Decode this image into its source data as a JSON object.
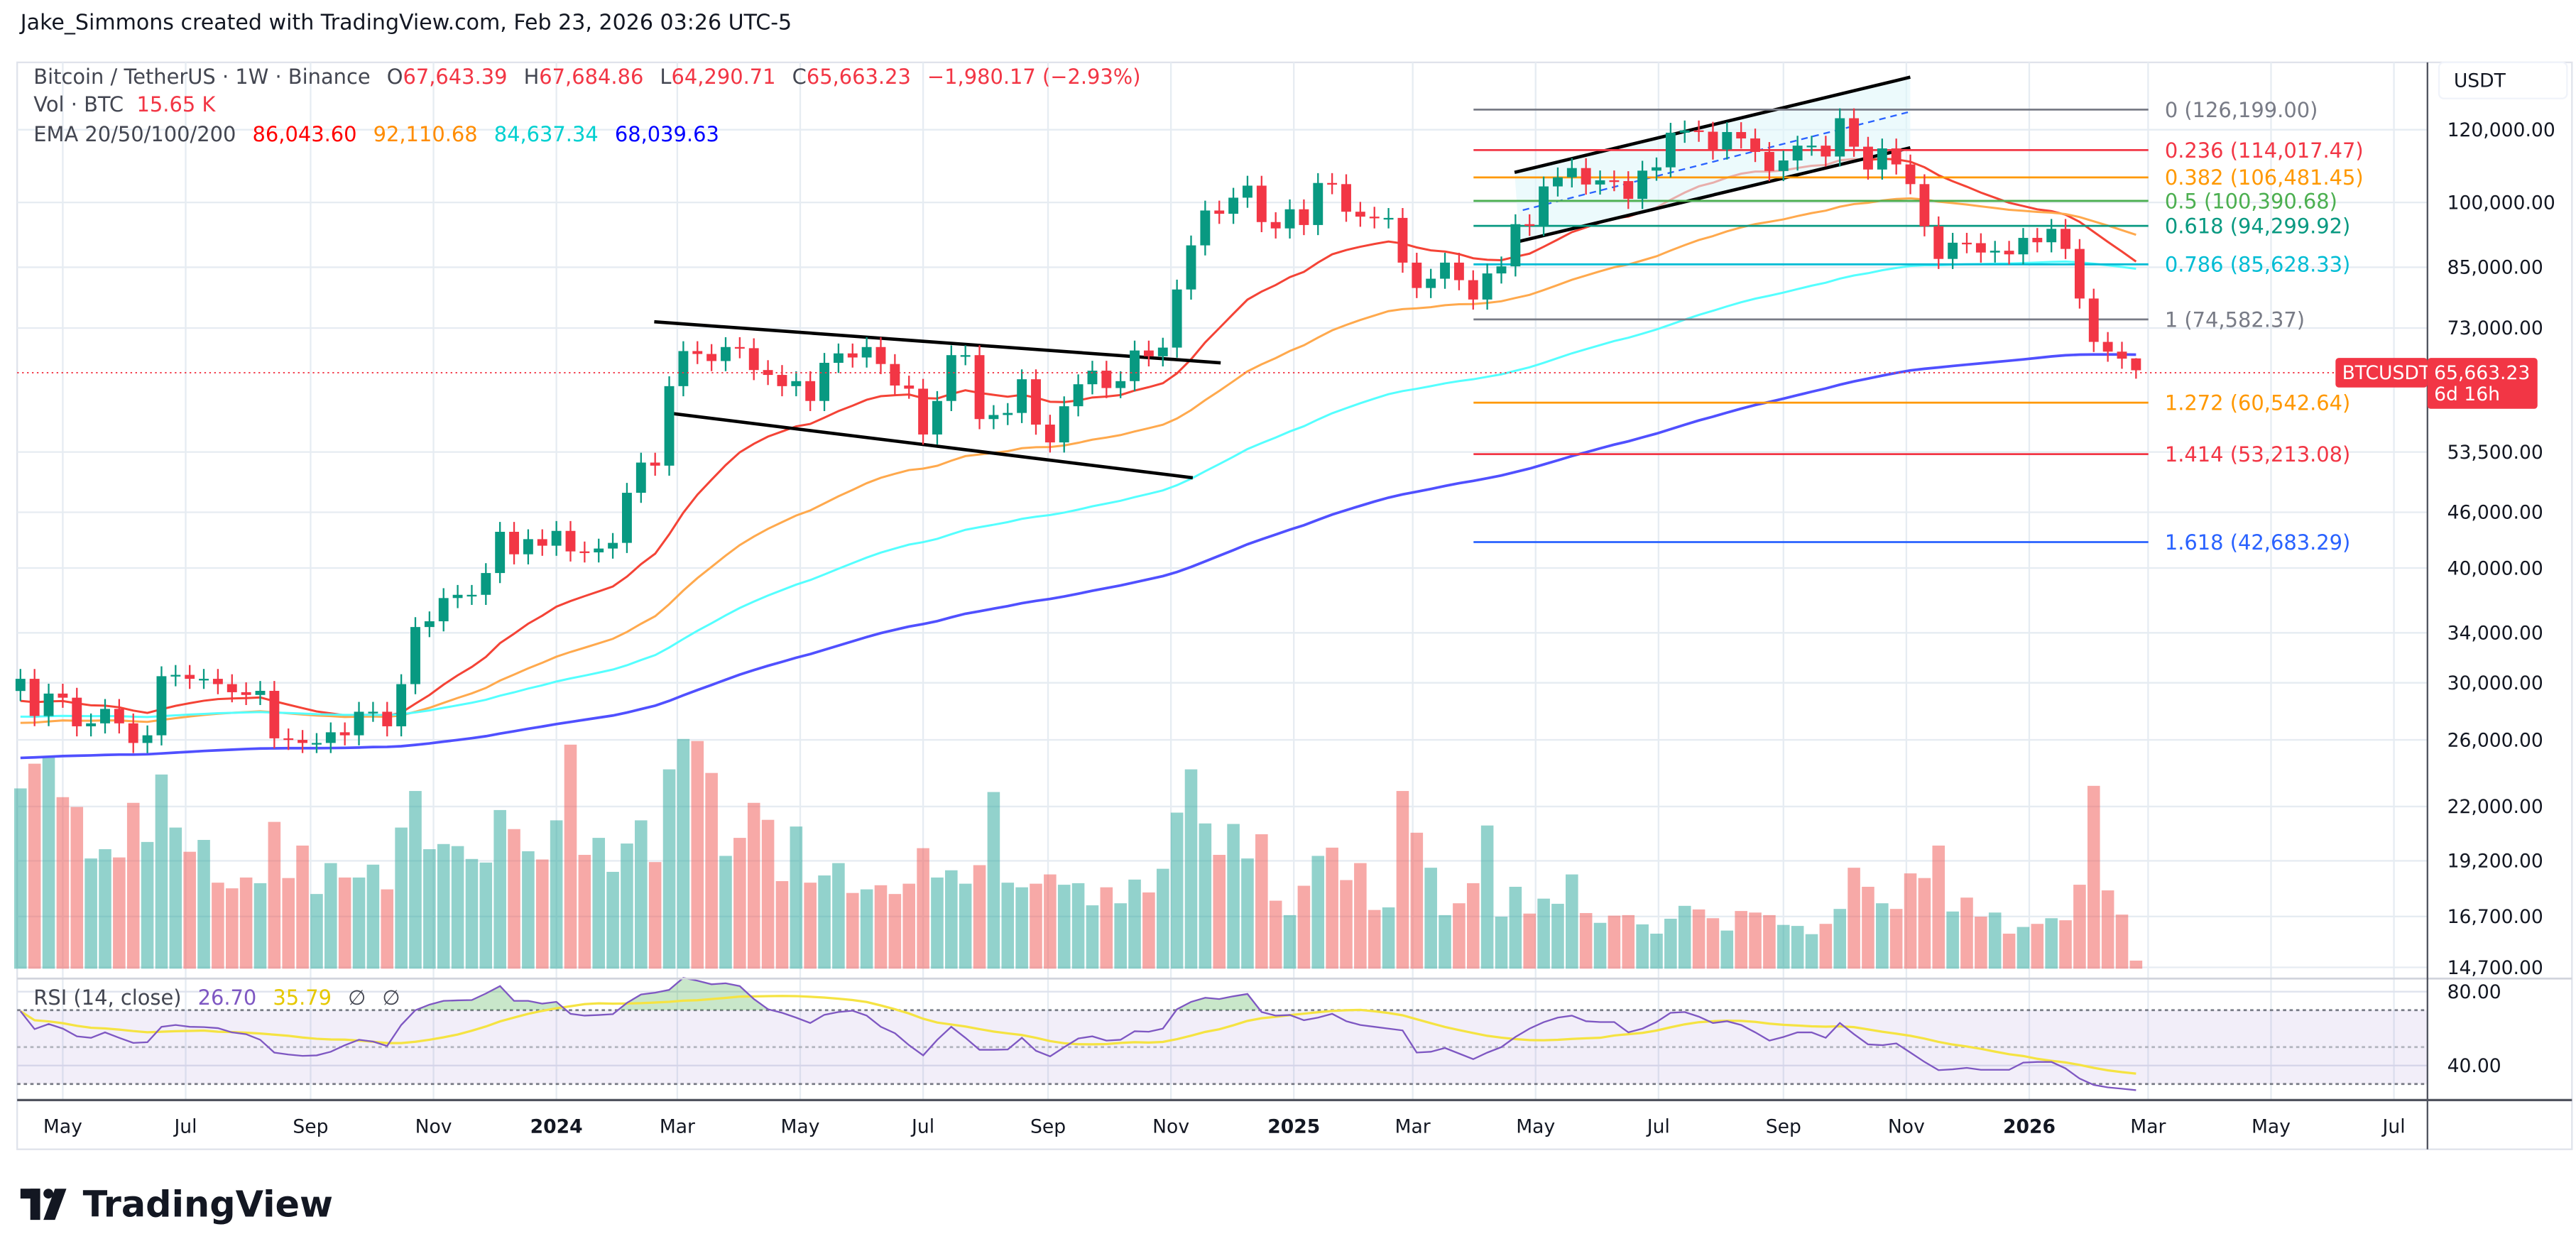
{
  "attribution": "Jake_Simmons created with TradingView.com, Feb 23, 2026 03:26 UTC-5",
  "legend": {
    "symbol": "Bitcoin / TetherUS · 1W · Binance",
    "o_label": "O",
    "o": "67,643.39",
    "h_label": "H",
    "h": "67,684.86",
    "l_label": "L",
    "l": "64,290.71",
    "c_label": "C",
    "c": "65,663.23",
    "change": "−1,980.17 (−2.93%)",
    "vol_label": "Vol · BTC",
    "vol": "15.65 K",
    "ema_label": "EMA 20/50/100/200",
    "ema20": "86,043.60",
    "ema50": "92,110.68",
    "ema100": "84,637.34",
    "ema200": "68,039.63",
    "ema_colors": [
      "#ff0000",
      "#ff8c00",
      "#00e0e0",
      "#0000ff"
    ]
  },
  "currency": "USDT",
  "last_price": {
    "ticker": "BTCUSDT",
    "price": "65,663.23",
    "countdown": "6d 16h",
    "color": "#f23645"
  },
  "rsi_legend": {
    "label": "RSI (14, close)",
    "rsi": "26.70",
    "ma": "35.79",
    "e1": "∅",
    "e2": "∅",
    "rsi_color": "#7e57c2",
    "ma_color": "#f5d800"
  },
  "logo": {
    "text": "TradingView",
    "icon": "tradingview-logo-icon"
  },
  "chart_data": {
    "type": "candlestick",
    "timeframe": "1W",
    "scale": "log",
    "first_week": "2023-04-10",
    "grid": true,
    "colors": {
      "up": "#089981",
      "down": "#f23645"
    },
    "close": [
      30300,
      27600,
      29200,
      28900,
      26900,
      27100,
      28100,
      27100,
      25800,
      26300,
      30500,
      30600,
      30300,
      30300,
      29900,
      29300,
      29100,
      29400,
      26100,
      26000,
      25800,
      25800,
      26500,
      26300,
      27900,
      27900,
      26900,
      29900,
      34500,
      35000,
      37100,
      37400,
      37400,
      39500,
      43800,
      41400,
      43000,
      42300,
      43900,
      41700,
      41600,
      42000,
      42600,
      48300,
      52100,
      51700,
      63100,
      68900,
      68400,
      67200,
      69600,
      69400,
      65700,
      64900,
      63100,
      63900,
      60800,
      66900,
      68500,
      67800,
      69600,
      66700,
      63200,
      62700,
      55900,
      60800,
      68200,
      68200,
      58100,
      58700,
      59000,
      64200,
      57300,
      54800,
      60000,
      63400,
      65600,
      62800,
      63900,
      69000,
      68000,
      69500,
      80400,
      89800,
      98000,
      97200,
      101200,
      104300,
      95200,
      93700,
      98300,
      94500,
      105000,
      104700,
      97700,
      96500,
      96100,
      96200,
      86000,
      80700,
      82600,
      86000,
      82300,
      78400,
      83700,
      85200,
      94700,
      94300,
      104100,
      106500,
      109000,
      104600,
      105700,
      105500,
      100900,
      108300,
      109200,
      119100,
      119800,
      119400,
      114200,
      119300,
      117400,
      113500,
      108200,
      111100,
      115300,
      115300,
      112200,
      123500,
      115000,
      108600,
      114500,
      110000,
      104700,
      94200,
      86800,
      90400,
      90300,
      88200,
      88600,
      87800,
      91500,
      90500,
      93600,
      89000,
      78600,
      70500,
      68800,
      67600,
      65663.23
    ],
    "last_candle": {
      "open": 67643.39,
      "high": 67684.86,
      "low": 64290.71,
      "close": 65663.23
    },
    "volume_k_btc": [
      350,
      398,
      412,
      333,
      314,
      214,
      232,
      216,
      322,
      246,
      377,
      274,
      227,
      250,
      167,
      156,
      177,
      166,
      285,
      176,
      239,
      145,
      205,
      177,
      177,
      202,
      154,
      274,
      345,
      232,
      242,
      238,
      213,
      206,
      308,
      271,
      228,
      212,
      288,
      435,
      221,
      254,
      188,
      243,
      288,
      207,
      387,
      446,
      442,
      380,
      219,
      254,
      322,
      289,
      170,
      276,
      167,
      181,
      205,
      147,
      154,
      162,
      145,
      165,
      234,
      177,
      191,
      165,
      201,
      343,
      167,
      158,
      165,
      183,
      163,
      166,
      123,
      158,
      127,
      173,
      148,
      194,
      303,
      387,
      282,
      221,
      281,
      214,
      261,
      132,
      104,
      161,
      219,
      235,
      172,
      205,
      114,
      119,
      345,
      264,
      196,
      104,
      127,
      166,
      278,
      101,
      159,
      107,
      136,
      126,
      183,
      108,
      89,
      103,
      104,
      86,
      68,
      97,
      122,
      115,
      98,
      74,
      112,
      109,
      104,
      85,
      83,
      67,
      87,
      116,
      196,
      159,
      127,
      116,
      185,
      176,
      239,
      111,
      138,
      101,
      109,
      68,
      81,
      87,
      98,
      94,
      163,
      355,
      152,
      105,
      15.65
    ],
    "rsi": [
      69.4,
      59.7,
      62.5,
      60,
      55.8,
      55,
      58,
      55,
      52.3,
      52.6,
      61,
      62,
      61,
      60.8,
      60.3,
      58,
      57,
      54,
      47,
      46,
      45.2,
      45.5,
      47.5,
      51,
      54,
      53,
      50.6,
      62,
      70,
      73,
      75,
      75.3,
      75.5,
      79,
      83,
      75,
      75,
      73.5,
      74.5,
      68,
      67,
      67.4,
      67.8,
      74,
      78.5,
      79.5,
      81,
      87.5,
      86,
      84,
      84.5,
      83,
      76,
      70.5,
      68.5,
      66,
      63,
      67.5,
      69,
      69.7,
      67,
      61,
      57.5,
      51,
      45.5,
      54,
      61,
      55,
      48.5,
      48.5,
      48.7,
      55,
      48,
      45,
      50,
      54.7,
      55.8,
      53.5,
      54,
      58.6,
      58.3,
      60,
      70.5,
      74.5,
      76.7,
      76,
      77.5,
      78.8,
      69,
      67,
      67.4,
      64.5,
      66,
      68,
      64,
      62,
      61,
      60,
      59,
      47,
      47.5,
      49.5,
      46.5,
      43.5,
      47,
      50,
      55.5,
      60,
      63.5,
      66,
      67,
      64,
      63.6,
      63.6,
      58,
      60,
      63.6,
      68.5,
      69,
      66.5,
      63,
      64,
      62,
      58,
      53.5,
      55.5,
      58,
      58,
      55,
      63,
      57,
      51.5,
      51,
      52,
      47,
      42,
      37.5,
      38,
      38.8,
      37.7,
      37.7,
      37.7,
      41.6,
      42,
      42,
      38.5,
      33,
      29.5,
      28.2,
      27.5,
      26.7
    ],
    "rsi_levels": {
      "upper": 70,
      "middle": 50,
      "lower": 30
    },
    "rsi_axis_ticks": [
      "80.00",
      "40.00"
    ],
    "ema_periods": [
      20,
      50,
      100,
      200
    ],
    "ema_line_colors": [
      "#f44336",
      "#ffa94d",
      "#55ffff",
      "#5050ff"
    ],
    "price_axis_ticks": [
      "120,000.00",
      "100,000.00",
      "85,000.00",
      "73,000.00",
      "53,500.00",
      "46,000.00",
      "40,000.00",
      "34,000.00",
      "30,000.00",
      "26,000.00",
      "22,000.00",
      "19,200.00",
      "16,700.00",
      "14,700.00"
    ],
    "time_axis_ticks": [
      {
        "label": "May",
        "date": "2023-05-01"
      },
      {
        "label": "Jul",
        "date": "2023-07-01"
      },
      {
        "label": "Sep",
        "date": "2023-09-01"
      },
      {
        "label": "Nov",
        "date": "2023-11-01"
      },
      {
        "label": "2024",
        "date": "2024-01-01",
        "bold": true
      },
      {
        "label": "Mar",
        "date": "2024-03-01"
      },
      {
        "label": "May",
        "date": "2024-05-01"
      },
      {
        "label": "Jul",
        "date": "2024-07-01"
      },
      {
        "label": "Sep",
        "date": "2024-09-01"
      },
      {
        "label": "Nov",
        "date": "2024-11-01"
      },
      {
        "label": "2025",
        "date": "2025-01-01",
        "bold": true
      },
      {
        "label": "Mar",
        "date": "2025-03-01"
      },
      {
        "label": "May",
        "date": "2025-05-01"
      },
      {
        "label": "Jul",
        "date": "2025-07-01"
      },
      {
        "label": "Sep",
        "date": "2025-09-01"
      },
      {
        "label": "Nov",
        "date": "2025-11-01"
      },
      {
        "label": "2026",
        "date": "2026-01-01",
        "bold": true
      },
      {
        "label": "Mar",
        "date": "2026-03-01"
      },
      {
        "label": "May",
        "date": "2026-05-01"
      },
      {
        "label": "Jul",
        "date": "2026-07-01"
      }
    ],
    "fibonacci": [
      {
        "ratio": "0",
        "value": 126199.0,
        "label": "0 (126,199.00)",
        "color": "#787b86"
      },
      {
        "ratio": "0.236",
        "value": 114017.47,
        "label": "0.236 (114,017.47)",
        "color": "#f23645"
      },
      {
        "ratio": "0.382",
        "value": 106481.45,
        "label": "0.382 (106,481.45)",
        "color": "#ff9800"
      },
      {
        "ratio": "0.5",
        "value": 100390.68,
        "label": "0.5 (100,390.68)",
        "color": "#4caf50"
      },
      {
        "ratio": "0.618",
        "value": 94299.92,
        "label": "0.618 (94,299.92)",
        "color": "#089981"
      },
      {
        "ratio": "0.786",
        "value": 85628.33,
        "label": "0.786 (85,628.33)",
        "color": "#00bcd4"
      },
      {
        "ratio": "1",
        "value": 74582.37,
        "label": "1 (74,582.37)",
        "color": "#787b86"
      },
      {
        "ratio": "1.272",
        "value": 60542.64,
        "label": "1.272 (60,542.64)",
        "color": "#ff9800"
      },
      {
        "ratio": "1.414",
        "value": 53213.08,
        "label": "1.414 (53,213.08)",
        "color": "#f23645"
      },
      {
        "ratio": "1.618",
        "value": 42683.29,
        "label": "1.618 (42,683.29)",
        "color": "#2962ff"
      }
    ]
  }
}
